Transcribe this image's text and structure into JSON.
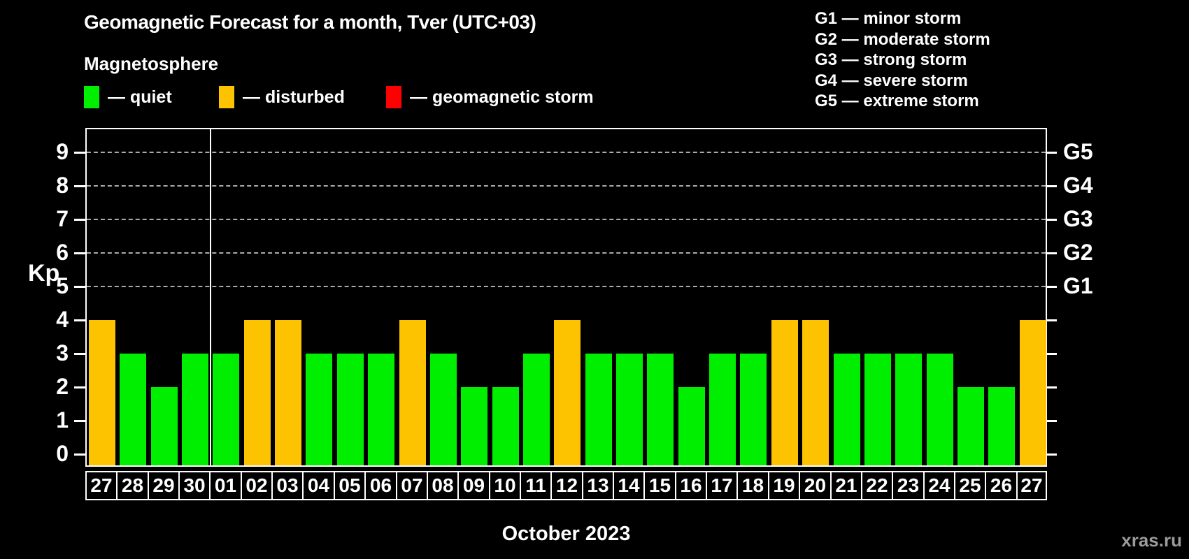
{
  "title": "Geomagnetic Forecast for a month, Tver (UTC+03)",
  "subtitle": "Magnetosphere",
  "legend": {
    "items": [
      {
        "key": "quiet",
        "label": "— quiet"
      },
      {
        "key": "disturbed",
        "label": "— disturbed"
      },
      {
        "key": "storm",
        "label": "— geomagnetic storm"
      }
    ]
  },
  "g_legend": [
    "G1 — minor storm",
    "G2 — moderate storm",
    "G3 — strong storm",
    "G4 — severe storm",
    "G5 — extreme storm"
  ],
  "colors": {
    "quiet": "#00ef00",
    "disturbed": "#fdc300",
    "storm": "#ff0000",
    "background": "#000000",
    "axis": "#ffffff",
    "grid": "#aaaaaa",
    "watermark_text": "#9c9c9c"
  },
  "chart_data": {
    "type": "bar",
    "title": "Geomagnetic Forecast for a month, Tver (UTC+03)",
    "xlabel": "October 2023",
    "ylabel": "Kp",
    "ylim": [
      0,
      9
    ],
    "grid": "horizontal dashed lines at Kp 5-9 only",
    "legend_position": "above chart (quiet / disturbed / geomagnetic storm), G-scale legend top right",
    "categories": [
      "27",
      "28",
      "29",
      "30",
      "01",
      "02",
      "03",
      "04",
      "05",
      "06",
      "07",
      "08",
      "09",
      "10",
      "11",
      "12",
      "13",
      "14",
      "15",
      "16",
      "17",
      "18",
      "19",
      "20",
      "21",
      "22",
      "23",
      "24",
      "25",
      "26",
      "27"
    ],
    "values": [
      4,
      3,
      2,
      3,
      3,
      4,
      4,
      3,
      3,
      3,
      4,
      3,
      2,
      2,
      3,
      4,
      3,
      3,
      3,
      2,
      3,
      3,
      4,
      4,
      3,
      3,
      3,
      3,
      2,
      2,
      4
    ],
    "statuses": [
      "disturbed",
      "quiet",
      "quiet",
      "quiet",
      "quiet",
      "disturbed",
      "disturbed",
      "quiet",
      "quiet",
      "quiet",
      "disturbed",
      "quiet",
      "quiet",
      "quiet",
      "quiet",
      "disturbed",
      "quiet",
      "quiet",
      "quiet",
      "quiet",
      "quiet",
      "quiet",
      "disturbed",
      "disturbed",
      "quiet",
      "quiet",
      "quiet",
      "quiet",
      "quiet",
      "quiet",
      "disturbed"
    ],
    "y_ticks": [
      0,
      1,
      2,
      3,
      4,
      5,
      6,
      7,
      8,
      9
    ],
    "grid_levels": [
      5,
      6,
      7,
      8,
      9
    ],
    "right_axis_labels": [
      {
        "kp": 5,
        "label": "G1"
      },
      {
        "kp": 6,
        "label": "G2"
      },
      {
        "kp": 7,
        "label": "G3"
      },
      {
        "kp": 8,
        "label": "G4"
      },
      {
        "kp": 9,
        "label": "G5"
      }
    ],
    "month_separator_after_index": 3
  },
  "watermark": "xras.ru"
}
